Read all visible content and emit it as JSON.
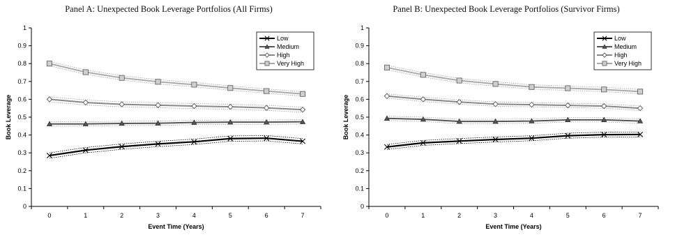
{
  "chart_data": [
    {
      "type": "line",
      "title": "Panel A: Unexpected Book Leverage Portfolios (All Firms)",
      "xlabel": "Event Time (Years)",
      "ylabel": "Book Leverage",
      "x": [
        0,
        1,
        2,
        3,
        4,
        5,
        6,
        7
      ],
      "xticks": [
        "0",
        "1",
        "2",
        "3",
        "4",
        "5",
        "6",
        "7"
      ],
      "yticks": [
        "0",
        "0.1",
        "0.2",
        "0.3",
        "0.4",
        "0.5",
        "0.6",
        "0.7",
        "0.8",
        "0.9",
        "1"
      ],
      "ylim": [
        0,
        1
      ],
      "grid": false,
      "legend_position": "top-right",
      "series": [
        {
          "name": "Low",
          "values": [
            0.285,
            0.315,
            0.335,
            0.35,
            0.362,
            0.38,
            0.382,
            0.365
          ],
          "band": 0.015,
          "color": "#000000",
          "marker": "x"
        },
        {
          "name": "Medium",
          "values": [
            0.462,
            0.462,
            0.465,
            0.466,
            0.47,
            0.472,
            0.472,
            0.474
          ],
          "band": 0.012,
          "color": "#555555",
          "marker": "triangle"
        },
        {
          "name": "High",
          "values": [
            0.6,
            0.582,
            0.572,
            0.567,
            0.562,
            0.558,
            0.552,
            0.542
          ],
          "band": 0.014,
          "color": "#888888",
          "marker": "diamond"
        },
        {
          "name": "Very High",
          "values": [
            0.8,
            0.752,
            0.72,
            0.698,
            0.682,
            0.663,
            0.646,
            0.63
          ],
          "band": 0.012,
          "color": "#aaaaaa",
          "marker": "square"
        }
      ]
    },
    {
      "type": "line",
      "title": "Panel B: Unexpected Book Leverage Portfolios (Survivor Firms)",
      "xlabel": "Event Time (Years)",
      "ylabel": "Book Leverage",
      "x": [
        0,
        1,
        2,
        3,
        4,
        5,
        6,
        7
      ],
      "xticks": [
        "0",
        "1",
        "2",
        "3",
        "4",
        "5",
        "6",
        "7"
      ],
      "yticks": [
        "0",
        "0.1",
        "0.2",
        "0.3",
        "0.4",
        "0.5",
        "0.6",
        "0.7",
        "0.8",
        "0.9",
        "1"
      ],
      "ylim": [
        0,
        1
      ],
      "grid": false,
      "legend_position": "top-right",
      "series": [
        {
          "name": "Low",
          "values": [
            0.333,
            0.356,
            0.366,
            0.375,
            0.382,
            0.396,
            0.402,
            0.403
          ],
          "band": 0.014,
          "color": "#000000",
          "marker": "x"
        },
        {
          "name": "Medium",
          "values": [
            0.493,
            0.488,
            0.476,
            0.476,
            0.478,
            0.485,
            0.485,
            0.478
          ],
          "band": 0.012,
          "color": "#555555",
          "marker": "triangle"
        },
        {
          "name": "High",
          "values": [
            0.618,
            0.6,
            0.585,
            0.573,
            0.57,
            0.566,
            0.562,
            0.55
          ],
          "band": 0.012,
          "color": "#888888",
          "marker": "diamond"
        },
        {
          "name": "Very High",
          "values": [
            0.778,
            0.737,
            0.705,
            0.686,
            0.669,
            0.662,
            0.655,
            0.643
          ],
          "band": 0.012,
          "color": "#aaaaaa",
          "marker": "square"
        }
      ]
    }
  ]
}
